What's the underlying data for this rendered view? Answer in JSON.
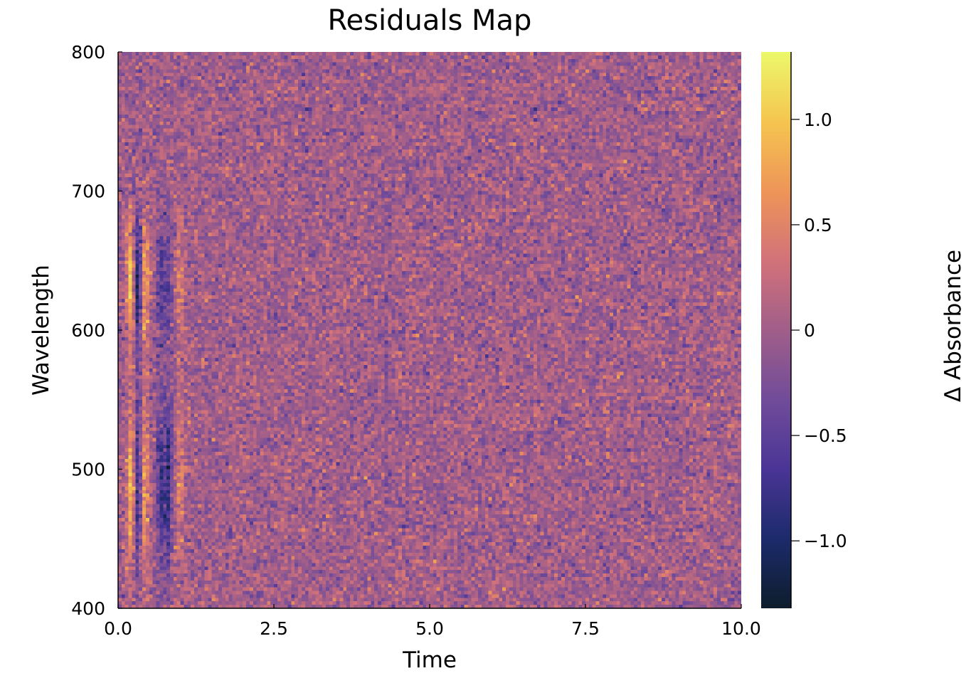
{
  "chart_data": {
    "type": "heatmap",
    "title": "Residuals Map",
    "xlabel": "Time",
    "ylabel": "Wavelength",
    "colorbar_label": "Δ Absorbance",
    "xlim": [
      0,
      10
    ],
    "ylim": [
      400,
      800
    ],
    "clim": [
      -1.32,
      1.32
    ],
    "xticks": [
      0,
      2.5,
      5,
      7.5,
      10
    ],
    "xtick_labels": [
      "0.0",
      "2.5",
      "5.0",
      "7.5",
      "10.0"
    ],
    "yticks": [
      400,
      500,
      600,
      700,
      800
    ],
    "ytick_labels": [
      "400",
      "500",
      "600",
      "700",
      "800"
    ],
    "cticks": [
      -1.0,
      -0.5,
      0,
      0.5,
      1.0
    ],
    "ctick_labels": [
      "−1.0",
      "−0.5",
      "0",
      "0.5",
      "1.0"
    ],
    "grid": {
      "time_points": 180,
      "wavelength_points": 160
    },
    "noise_level": 0.2,
    "colormap": [
      "#0d1d2c",
      "#1c2b6b",
      "#4a3596",
      "#714c9a",
      "#a05e89",
      "#d2727a",
      "#ee9558",
      "#f5c54f",
      "#ecf86a"
    ],
    "features": [
      {
        "band_center": 635,
        "band_width": 30,
        "times": [
          0.21,
          0.31,
          0.43,
          0.68,
          0.8,
          1.0
        ],
        "amplitudes": [
          1.0,
          -1.15,
          0.75,
          -0.55,
          -0.5,
          0.45
        ]
      },
      {
        "band_center": 490,
        "band_width": 45,
        "times": [
          0.21,
          0.31,
          0.43,
          0.68,
          0.8,
          1.0
        ],
        "amplitudes": [
          0.95,
          -0.9,
          0.65,
          -0.75,
          -0.85,
          0.45
        ]
      }
    ]
  }
}
